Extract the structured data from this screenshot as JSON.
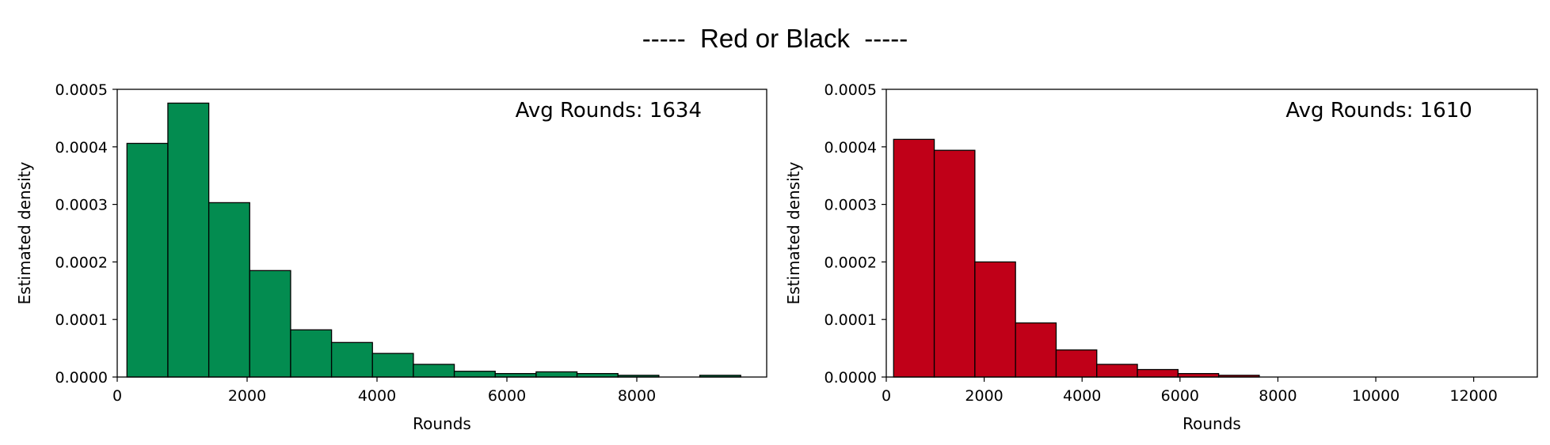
{
  "suptitle": "-----  Red or Black  -----",
  "chart_data": [
    {
      "type": "bar",
      "color": "#038c50",
      "edgecolor": "#000000",
      "annotation": "Avg Rounds: 1634",
      "xlabel": "Rounds",
      "ylabel": "Estimated density",
      "xlim": [
        0,
        10000
      ],
      "ylim": [
        0,
        0.0005
      ],
      "xticks": [
        0,
        2000,
        4000,
        6000,
        8000
      ],
      "xtick_labels": [
        "0",
        "2000",
        "4000",
        "6000",
        "8000"
      ],
      "yticks": [
        0,
        0.0001,
        0.0002,
        0.0003,
        0.0004,
        0.0005
      ],
      "ytick_labels": [
        "0.0000",
        "0.0001",
        "0.0002",
        "0.0003",
        "0.0004",
        "0.0005"
      ],
      "grid": false,
      "bins": [
        {
          "x0": 150,
          "x1": 780,
          "density": 0.000406
        },
        {
          "x0": 780,
          "x1": 1410,
          "density": 0.000476
        },
        {
          "x0": 1410,
          "x1": 2040,
          "density": 0.000303
        },
        {
          "x0": 2040,
          "x1": 2670,
          "density": 0.000185
        },
        {
          "x0": 2670,
          "x1": 3300,
          "density": 8.2e-05
        },
        {
          "x0": 3300,
          "x1": 3930,
          "density": 6e-05
        },
        {
          "x0": 3930,
          "x1": 4560,
          "density": 4.1e-05
        },
        {
          "x0": 4560,
          "x1": 5190,
          "density": 2.2e-05
        },
        {
          "x0": 5190,
          "x1": 5820,
          "density": 1e-05
        },
        {
          "x0": 5820,
          "x1": 6450,
          "density": 6e-06
        },
        {
          "x0": 6450,
          "x1": 7080,
          "density": 9e-06
        },
        {
          "x0": 7080,
          "x1": 7710,
          "density": 6e-06
        },
        {
          "x0": 7710,
          "x1": 8340,
          "density": 3e-06
        },
        {
          "x0": 8340,
          "x1": 8970,
          "density": 0.0
        },
        {
          "x0": 8970,
          "x1": 9600,
          "density": 3e-06
        }
      ]
    },
    {
      "type": "bar",
      "color": "#c00018",
      "edgecolor": "#000000",
      "annotation": "Avg Rounds: 1610",
      "xlabel": "Rounds",
      "ylabel": "Estimated density",
      "xlim": [
        0,
        13300
      ],
      "ylim": [
        0,
        0.0005
      ],
      "xticks": [
        0,
        2000,
        4000,
        6000,
        8000,
        10000,
        12000
      ],
      "xtick_labels": [
        "0",
        "2000",
        "4000",
        "6000",
        "8000",
        "10000",
        "12000"
      ],
      "yticks": [
        0,
        0.0001,
        0.0002,
        0.0003,
        0.0004,
        0.0005
      ],
      "ytick_labels": [
        "0.0000",
        "0.0001",
        "0.0002",
        "0.0003",
        "0.0004",
        "0.0005"
      ],
      "grid": false,
      "bins": [
        {
          "x0": 150,
          "x1": 980,
          "density": 0.000413
        },
        {
          "x0": 980,
          "x1": 1810,
          "density": 0.000394
        },
        {
          "x0": 1810,
          "x1": 2640,
          "density": 0.0002
        },
        {
          "x0": 2640,
          "x1": 3470,
          "density": 9.4e-05
        },
        {
          "x0": 3470,
          "x1": 4300,
          "density": 4.7e-05
        },
        {
          "x0": 4300,
          "x1": 5130,
          "density": 2.2e-05
        },
        {
          "x0": 5130,
          "x1": 5960,
          "density": 1.3e-05
        },
        {
          "x0": 5960,
          "x1": 6790,
          "density": 6e-06
        },
        {
          "x0": 6790,
          "x1": 7620,
          "density": 3e-06
        },
        {
          "x0": 7620,
          "x1": 8450,
          "density": 0.0
        },
        {
          "x0": 8450,
          "x1": 9280,
          "density": 0.0
        },
        {
          "x0": 9280,
          "x1": 10110,
          "density": 0.0
        },
        {
          "x0": 10110,
          "x1": 10940,
          "density": 0.0
        },
        {
          "x0": 10940,
          "x1": 11770,
          "density": 0.0
        },
        {
          "x0": 11770,
          "x1": 12600,
          "density": 0.0
        },
        {
          "x0": 12600,
          "x1": 13200,
          "density": 0.0
        }
      ]
    }
  ]
}
